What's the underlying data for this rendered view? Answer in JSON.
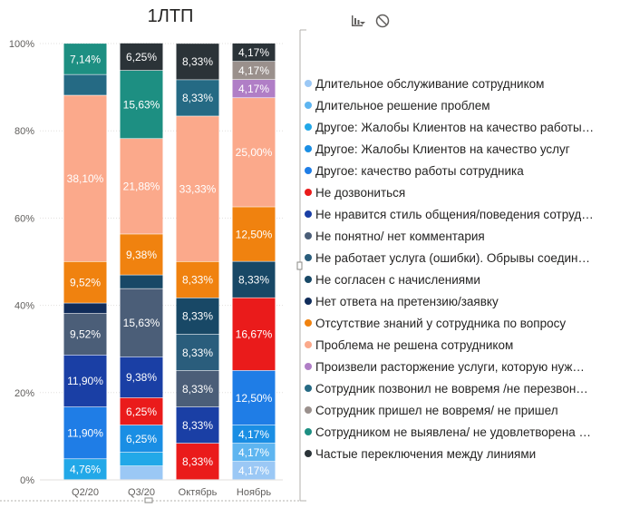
{
  "chart_data": {
    "type": "bar",
    "stacked": "percent",
    "title": "1ЛТП",
    "categories": [
      "Q2/20",
      "Q3/20",
      "Октябрь",
      "Ноябрь"
    ],
    "y_ticks": [
      "0%",
      "20%",
      "40%",
      "60%",
      "80%",
      "100%"
    ],
    "ylim": [
      0,
      100
    ],
    "legend_position": "right",
    "grid": true,
    "series": [
      {
        "name": "Длительное обслуживание сотрудником",
        "color": "#9bc8f5",
        "values": [
          0,
          3.13,
          0,
          4.17
        ],
        "labels": [
          "",
          "",
          "",
          "4,17%"
        ]
      },
      {
        "name": "Длительное решение проблем",
        "color": "#5eb5f0",
        "values": [
          0,
          0,
          0,
          4.17
        ],
        "labels": [
          "",
          "",
          "",
          "4,17%"
        ]
      },
      {
        "name": "Другое: Жалобы Клиентов на качество работы…",
        "color": "#22a8e8",
        "values": [
          4.76,
          3.13,
          0,
          0
        ],
        "labels": [
          "4,76%",
          "",
          "",
          ""
        ]
      },
      {
        "name": "Другое: Жалобы Клиентов на качество услуг",
        "color": "#1a8ee4",
        "values": [
          0,
          6.25,
          0,
          4.17
        ],
        "labels": [
          "",
          "6,25%",
          "",
          "4,17%"
        ]
      },
      {
        "name": "Другое: качество работы сотрудника",
        "color": "#1f7de6",
        "values": [
          11.9,
          0,
          0,
          12.5
        ],
        "labels": [
          "11,90%",
          "",
          "",
          "12,50%"
        ]
      },
      {
        "name": "Не дозвониться",
        "color": "#ea1b1b",
        "values": [
          0,
          6.25,
          8.33,
          16.67
        ],
        "labels": [
          "",
          "6,25%",
          "8,33%",
          "16,67%"
        ]
      },
      {
        "name": "Не нравится стиль общения/поведения сотруд…",
        "color": "#1a3fa5",
        "values": [
          11.9,
          9.38,
          8.33,
          0
        ],
        "labels": [
          "11,90%",
          "9,38%",
          "8,33%",
          ""
        ]
      },
      {
        "name": "Не понятно/ нет комментария",
        "color": "#4b5e78",
        "values": [
          9.52,
          15.63,
          8.33,
          0
        ],
        "labels": [
          "9,52%",
          "15,63%",
          "8,33%",
          ""
        ]
      },
      {
        "name": "Не работает услуга (ошибки). Обрывы соедин…",
        "color": "#2a5d7c",
        "values": [
          0,
          0,
          8.33,
          0
        ],
        "labels": [
          "",
          "",
          "8,33%",
          ""
        ]
      },
      {
        "name": "Не согласен с начислениями",
        "color": "#184866",
        "values": [
          0,
          3.13,
          8.33,
          8.33
        ],
        "labels": [
          "",
          "",
          "8,33%",
          "8,33%"
        ]
      },
      {
        "name": "Нет ответа на претензию/заявку",
        "color": "#102c5a",
        "values": [
          2.38,
          0,
          0,
          0
        ],
        "labels": [
          "",
          "",
          "",
          ""
        ]
      },
      {
        "name": "Отсутствие знаний у сотрудника по вопросу",
        "color": "#f0820f",
        "values": [
          9.52,
          9.38,
          8.33,
          12.5
        ],
        "labels": [
          "9,52%",
          "9,38%",
          "8,33%",
          "12,50%"
        ]
      },
      {
        "name": "Проблема не решена сотрудником",
        "color": "#fba98b",
        "values": [
          38.1,
          21.88,
          33.33,
          25
        ],
        "labels": [
          "38,10%",
          "21,88%",
          "33,33%",
          "25,00%"
        ]
      },
      {
        "name": "Произвели расторжение услуги, которую нуж…",
        "color": "#b07ec6",
        "values": [
          0,
          0,
          0,
          4.17
        ],
        "labels": [
          "",
          "",
          "",
          "4,17%"
        ]
      },
      {
        "name": "Сотрудник позвонил не вовремя /не перезвон…",
        "color": "#256a84",
        "values": [
          4.76,
          0,
          8.33,
          0
        ],
        "labels": [
          "",
          "",
          "8,33%",
          ""
        ]
      },
      {
        "name": "Сотрудник пришел не вовремя/ не пришел",
        "color": "#9a908c",
        "values": [
          0,
          0,
          0,
          4.17
        ],
        "labels": [
          "",
          "",
          "",
          "4,17%"
        ]
      },
      {
        "name": "Сотрудником не выявлена/ не удовлетворена …",
        "color": "#1d8f82",
        "values": [
          7.14,
          15.63,
          0,
          0
        ],
        "labels": [
          "7,14%",
          "15,63%",
          "",
          ""
        ]
      },
      {
        "name": "Частые переключения между линиями",
        "color": "#2b3338",
        "values": [
          0,
          6.25,
          8.33,
          4.17
        ],
        "labels": [
          "",
          "6,25%",
          "8,33%",
          "4,17%"
        ]
      }
    ]
  },
  "icons": [
    "drill-icon",
    "no-entry-icon"
  ]
}
